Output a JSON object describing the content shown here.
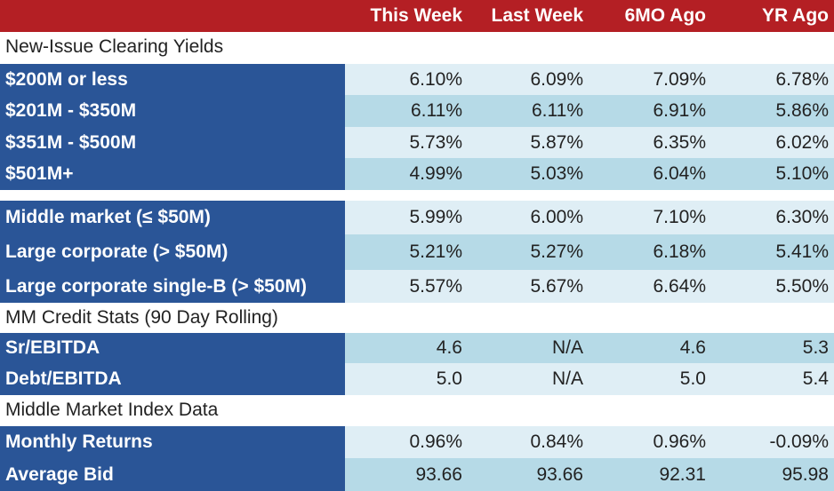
{
  "header": {
    "col1": "This Week",
    "col2": "Last Week",
    "col3": "6MO Ago",
    "col4": "YR Ago"
  },
  "sections": {
    "s1": "New-Issue Clearing Yields",
    "s2": "MM Credit Stats (90 Day Rolling)",
    "s3": "Middle Market Index Data"
  },
  "rows": [
    {
      "label": "$200M or less",
      "v": [
        "6.10%",
        "6.09%",
        "7.09%",
        "6.78%"
      ]
    },
    {
      "label": "$201M - $350M",
      "v": [
        "6.11%",
        "6.11%",
        "6.91%",
        "5.86%"
      ]
    },
    {
      "label": "$351M - $500M",
      "v": [
        "5.73%",
        "5.87%",
        "6.35%",
        "6.02%"
      ]
    },
    {
      "label": "$501M+",
      "v": [
        "4.99%",
        "5.03%",
        "6.04%",
        "5.10%"
      ]
    },
    {
      "label": "Middle market (≤ $50M)",
      "v": [
        "5.99%",
        "6.00%",
        "7.10%",
        "6.30%"
      ]
    },
    {
      "label": "Large corporate (> $50M)",
      "v": [
        "5.21%",
        "5.27%",
        "6.18%",
        "5.41%"
      ]
    },
    {
      "label": "Large corporate single-B (> $50M)",
      "v": [
        "5.57%",
        "5.67%",
        "6.64%",
        "5.50%"
      ]
    },
    {
      "label": "Sr/EBITDA",
      "v": [
        "4.6",
        "N/A",
        "4.6",
        "5.3"
      ]
    },
    {
      "label": "Debt/EBITDA",
      "v": [
        "5.0",
        "N/A",
        "5.0",
        "5.4"
      ]
    },
    {
      "label": "Monthly Returns",
      "v": [
        "0.96%",
        "0.84%",
        "0.96%",
        "-0.09%"
      ]
    },
    {
      "label": "Average Bid",
      "v": [
        "93.66",
        "93.66",
        "92.31",
        "95.98"
      ]
    }
  ]
}
